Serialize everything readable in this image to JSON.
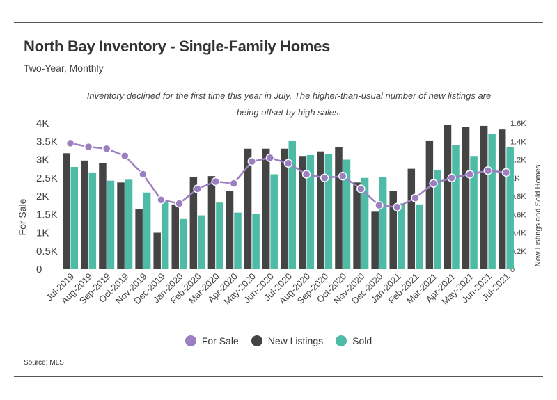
{
  "title": "North Bay Inventory - Single-Family Homes",
  "subtitle": "Two-Year, Monthly",
  "annotation": "Inventory declined for the first time this year in July. The higher-than-usual number of new listings are being offset by high sales.",
  "source": "Source:  MLS",
  "colors": {
    "for_sale": "#9b7fc0",
    "new_listings": "#444444",
    "sold": "#4dbba6"
  },
  "chart_data": {
    "type": "bar",
    "categories": [
      "Jul-2019",
      "Aug-2019",
      "Sep-2019",
      "Oct-2019",
      "Nov-2019",
      "Dec-2019",
      "Jan-2020",
      "Feb-2020",
      "Mar-2020",
      "Apr-2020",
      "May-2020",
      "Jun-2020",
      "Jul-2020",
      "Aug-2020",
      "Sep-2020",
      "Oct-2020",
      "Nov-2020",
      "Dec-2020",
      "Jan-2021",
      "Feb-2021",
      "Mar-2021",
      "Apr-2021",
      "May-2021",
      "Jun-2021",
      "Jul-2021"
    ],
    "series": [
      {
        "name": "For Sale",
        "type": "line",
        "axis": "left",
        "values": [
          3.45,
          3.35,
          3.3,
          3.1,
          2.6,
          1.9,
          1.8,
          2.2,
          2.4,
          2.35,
          2.95,
          3.05,
          2.9,
          2.6,
          2.5,
          2.55,
          2.2,
          1.75,
          1.7,
          1.95,
          2.35,
          2.5,
          2.6,
          2.7,
          2.65
        ]
      },
      {
        "name": "New Listings",
        "type": "bar",
        "axis": "right",
        "values": [
          1.27,
          1.19,
          1.16,
          0.95,
          0.66,
          0.4,
          0.71,
          1.01,
          1.02,
          0.86,
          1.32,
          1.32,
          1.32,
          1.24,
          1.29,
          1.34,
          0.95,
          0.63,
          0.86,
          1.1,
          1.41,
          1.58,
          1.56,
          1.57,
          1.53
        ]
      },
      {
        "name": "Sold",
        "type": "bar",
        "axis": "right",
        "values": [
          1.12,
          1.06,
          0.97,
          0.98,
          0.84,
          0.76,
          0.55,
          0.59,
          0.73,
          0.62,
          0.61,
          1.04,
          1.41,
          1.25,
          1.26,
          1.2,
          1.0,
          1.01,
          0.72,
          0.71,
          1.09,
          1.36,
          1.24,
          1.48,
          1.34
        ]
      }
    ],
    "y_left": {
      "label": "For Sale",
      "ticks": [
        "4K",
        "3.5K",
        "3K",
        "2.5K",
        "2K",
        "1.5K",
        "1K",
        "0.5K",
        "0"
      ],
      "range": [
        0,
        4
      ]
    },
    "y_right": {
      "label": "New Listings and Sold Homes",
      "ticks": [
        "1.6K",
        "1.4K",
        "1.2K",
        "1K",
        "0.8K",
        "0.6K",
        "0.4K",
        "0.2K",
        "0"
      ],
      "range": [
        0,
        1.6
      ]
    },
    "legend": {
      "placement": "bottom",
      "entries": [
        "For Sale",
        "New Listings",
        "Sold"
      ]
    },
    "grid": false
  }
}
